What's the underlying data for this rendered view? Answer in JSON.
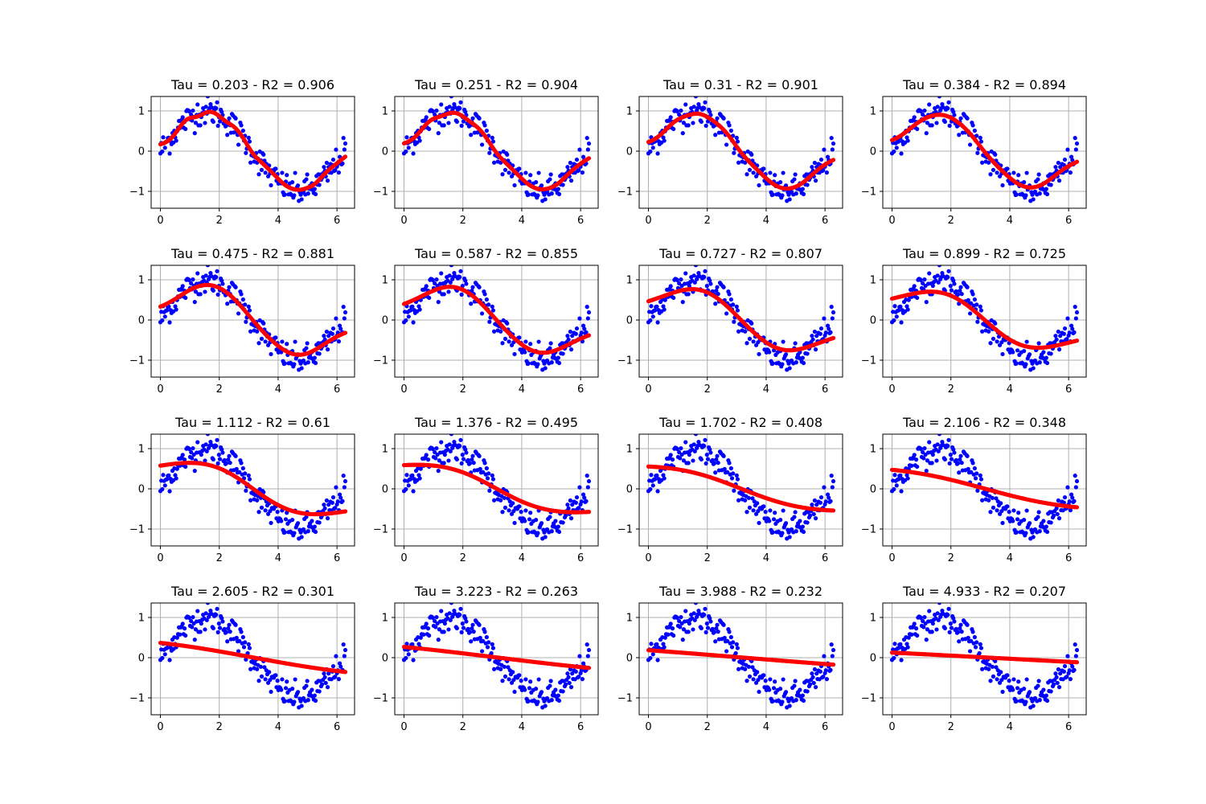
{
  "colors": {
    "data_points": "#0000ff",
    "fit_points": "#ff0000",
    "grid": "#b0b0b0",
    "axes": "#000000"
  },
  "chart_data": {
    "type": "scatter",
    "layout": "4x4 grid of subplots",
    "grid": true,
    "xlim": [
      -0.314,
      6.597
    ],
    "ylim": [
      -1.42,
      1.36
    ],
    "xticks": [
      0,
      2,
      4,
      6
    ],
    "yticks": [
      -1,
      0,
      1
    ],
    "x_tick_labels": [
      "0",
      "2",
      "4",
      "6"
    ],
    "y_tick_labels": [
      "−1",
      "0",
      "1"
    ],
    "data_series": {
      "description": "noisy samples of sin(x), x from 0 to 2π, shared by all subplots",
      "x_range": [
        0,
        6.283
      ],
      "noise_sd_approx": 0.18,
      "n_points": 200
    },
    "panels": [
      {
        "title": "Tau = 0.203 - R2 = 0.906",
        "tau": 0.203,
        "r2": 0.906
      },
      {
        "title": "Tau = 0.251 - R2 = 0.904",
        "tau": 0.251,
        "r2": 0.904
      },
      {
        "title": "Tau = 0.31 - R2 = 0.901",
        "tau": 0.31,
        "r2": 0.901
      },
      {
        "title": "Tau = 0.384 - R2 = 0.894",
        "tau": 0.384,
        "r2": 0.894
      },
      {
        "title": "Tau = 0.475 - R2 = 0.881",
        "tau": 0.475,
        "r2": 0.881
      },
      {
        "title": "Tau = 0.587 - R2 = 0.855",
        "tau": 0.587,
        "r2": 0.855
      },
      {
        "title": "Tau = 0.727 - R2 = 0.807",
        "tau": 0.727,
        "r2": 0.807
      },
      {
        "title": "Tau = 0.899 - R2 = 0.725",
        "tau": 0.899,
        "r2": 0.725
      },
      {
        "title": "Tau = 1.112 - R2 = 0.61",
        "tau": 1.112,
        "r2": 0.61
      },
      {
        "title": "Tau = 1.376 - R2 = 0.495",
        "tau": 1.376,
        "r2": 0.495
      },
      {
        "title": "Tau = 1.702 - R2 = 0.408",
        "tau": 1.702,
        "r2": 0.408
      },
      {
        "title": "Tau = 2.106 - R2 = 0.348",
        "tau": 2.106,
        "r2": 0.348
      },
      {
        "title": "Tau = 2.605 - R2 = 0.301",
        "tau": 2.605,
        "r2": 0.301
      },
      {
        "title": "Tau = 3.223 - R2 = 0.263",
        "tau": 3.223,
        "r2": 0.263
      },
      {
        "title": "Tau = 3.988 - R2 = 0.232",
        "tau": 3.988,
        "r2": 0.232
      },
      {
        "title": "Tau = 4.933 - R2 = 0.207",
        "tau": 4.933,
        "r2": 0.207
      }
    ]
  }
}
